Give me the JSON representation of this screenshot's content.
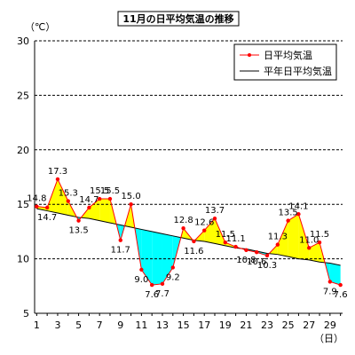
{
  "chart_data": {
    "type": "line",
    "title": "11月の日平均気温の推移",
    "ylabel": "（℃）",
    "xlabel": "（日）",
    "ylim": [
      5,
      30
    ],
    "yticks": [
      5,
      10,
      15,
      20,
      25,
      30
    ],
    "xticks": [
      1,
      3,
      5,
      7,
      9,
      11,
      13,
      15,
      17,
      19,
      21,
      23,
      25,
      27,
      29
    ],
    "x": [
      1,
      2,
      3,
      4,
      5,
      6,
      7,
      8,
      9,
      10,
      11,
      12,
      13,
      14,
      15,
      16,
      17,
      18,
      19,
      20,
      21,
      22,
      23,
      24,
      25,
      26,
      27,
      28,
      29,
      30
    ],
    "series": [
      {
        "name": "日平均気温",
        "values": [
          14.8,
          14.7,
          17.3,
          15.3,
          13.5,
          14.7,
          15.5,
          15.5,
          11.7,
          15.0,
          9.0,
          7.6,
          7.7,
          9.2,
          12.8,
          11.6,
          12.6,
          13.7,
          11.5,
          11.1,
          10.8,
          10.6,
          10.3,
          11.3,
          13.5,
          14.1,
          11.0,
          11.5,
          7.9,
          7.6
        ],
        "labels": [
          "14.8",
          "14.7",
          "17.3",
          "15.3",
          "13.5",
          "14.7",
          "15.5",
          "15.5",
          "11.7",
          "15.0",
          "9.0",
          "7.6",
          "7.7",
          "9.2",
          "12.8",
          "11.6",
          "12.6",
          "13.7",
          "11.5",
          "11.1",
          "10.8",
          "10.6",
          "10.3",
          "11.3",
          "13.5",
          "14.1",
          "11.0",
          "11.5",
          "7.9",
          "7.6"
        ],
        "color": "#ff0000"
      },
      {
        "name": "平年日平均気温",
        "values": [
          14.6,
          14.4,
          14.2,
          14.0,
          13.8,
          13.7,
          13.5,
          13.3,
          13.1,
          12.9,
          12.7,
          12.5,
          12.3,
          12.1,
          11.9,
          11.7,
          11.6,
          11.4,
          11.2,
          11.0,
          10.9,
          10.7,
          10.5,
          10.4,
          10.2,
          10.0,
          9.9,
          9.7,
          9.6,
          9.4
        ],
        "color": "#000000"
      }
    ],
    "fill_above_color": "#ffff00",
    "fill_below_color": "#00ffff",
    "grid": "dashed horizontal",
    "legend": "top-right"
  }
}
